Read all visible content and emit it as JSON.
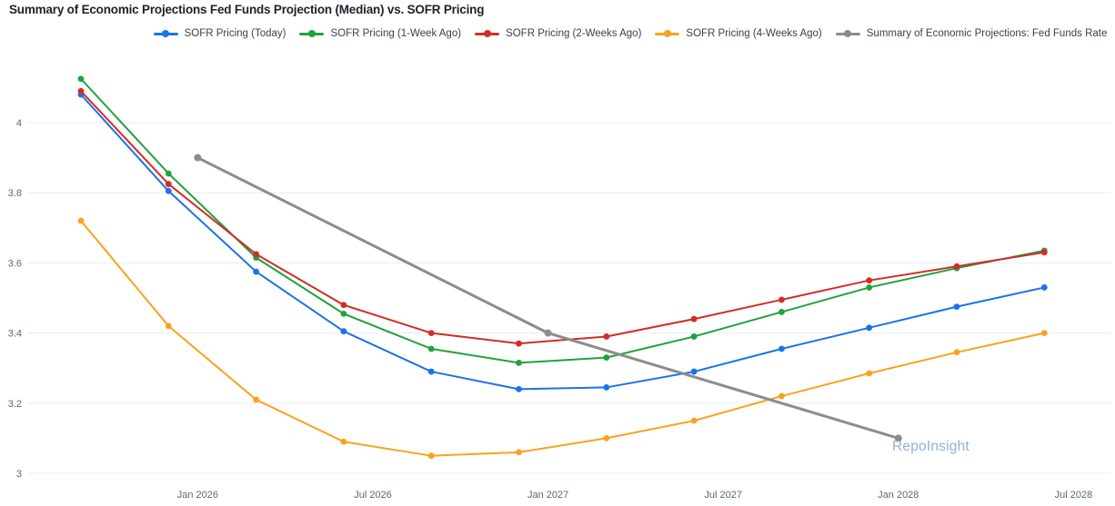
{
  "chart": {
    "title": "Summary of Economic Projections Fed Funds Projection (Median) vs. SOFR Pricing",
    "watermark": "RepoInsight"
  },
  "chart_data": {
    "type": "line",
    "title": "Summary of Economic Projections Fed Funds Projection (Median) vs. SOFR Pricing",
    "xlabel": "",
    "ylabel": "",
    "ylim": [
      2.95,
      4.2
    ],
    "grid": "horizontal-only",
    "legend_position": "top-center",
    "x_unit": "months since Sep 2025",
    "x_ticks": [
      {
        "label": "Jan 2026",
        "m": 4
      },
      {
        "label": "Jul 2026",
        "m": 10
      },
      {
        "label": "Jan 2027",
        "m": 16
      },
      {
        "label": "Jul 2027",
        "m": 22
      },
      {
        "label": "Jan 2028",
        "m": 28
      },
      {
        "label": "Jul 2028",
        "m": 34
      }
    ],
    "y_ticks": [
      {
        "label": "4",
        "v": 4.0
      },
      {
        "label": "3.8",
        "v": 3.8
      },
      {
        "label": "3.6",
        "v": 3.6
      },
      {
        "label": "3.4",
        "v": 3.4
      },
      {
        "label": "3.2",
        "v": 3.2
      },
      {
        "label": "3",
        "v": 3.0
      }
    ],
    "series": [
      {
        "name": "SOFR Pricing (Today)",
        "color": "#1a73e8",
        "line_width": 2,
        "dates": [
          "Sep 2025",
          "Dec 2025",
          "Mar 2026",
          "Jun 2026",
          "Sep 2026",
          "Dec 2026",
          "Mar 2027",
          "Jun 2027",
          "Sep 2027",
          "Dec 2027",
          "Mar 2028",
          "Jun 2028"
        ],
        "x_m": [
          0,
          3,
          6,
          9,
          12,
          15,
          18,
          21,
          24,
          27,
          30,
          33
        ],
        "values": [
          4.08,
          3.805,
          3.575,
          3.405,
          3.29,
          3.24,
          3.245,
          3.29,
          3.355,
          3.415,
          3.475,
          3.53
        ]
      },
      {
        "name": "SOFR Pricing (1-Week Ago)",
        "color": "#22a13d",
        "line_width": 2,
        "dates": [
          "Sep 2025",
          "Dec 2025",
          "Mar 2026",
          "Jun 2026",
          "Sep 2026",
          "Dec 2026",
          "Mar 2027",
          "Jun 2027",
          "Sep 2027",
          "Dec 2027",
          "Mar 2028",
          "Jun 2028"
        ],
        "x_m": [
          0,
          3,
          6,
          9,
          12,
          15,
          18,
          21,
          24,
          27,
          30,
          33
        ],
        "values": [
          4.125,
          3.855,
          3.615,
          3.455,
          3.355,
          3.315,
          3.33,
          3.39,
          3.46,
          3.53,
          3.585,
          3.635
        ]
      },
      {
        "name": "SOFR Pricing (2-Weeks Ago)",
        "color": "#d22d26",
        "line_width": 2,
        "dates": [
          "Sep 2025",
          "Dec 2025",
          "Mar 2026",
          "Jun 2026",
          "Sep 2026",
          "Dec 2026",
          "Mar 2027",
          "Jun 2027",
          "Sep 2027",
          "Dec 2027",
          "Mar 2028",
          "Jun 2028"
        ],
        "x_m": [
          0,
          3,
          6,
          9,
          12,
          15,
          18,
          21,
          24,
          27,
          30,
          33
        ],
        "values": [
          4.09,
          3.825,
          3.625,
          3.48,
          3.4,
          3.37,
          3.39,
          3.44,
          3.495,
          3.55,
          3.59,
          3.63
        ]
      },
      {
        "name": "SOFR Pricing (4-Weeks Ago)",
        "color": "#faa21e",
        "line_width": 2,
        "dates": [
          "Sep 2025",
          "Dec 2025",
          "Mar 2026",
          "Jun 2026",
          "Sep 2026",
          "Dec 2026",
          "Mar 2027",
          "Jun 2027",
          "Sep 2027",
          "Dec 2027",
          "Mar 2028",
          "Jun 2028"
        ],
        "x_m": [
          0,
          3,
          6,
          9,
          12,
          15,
          18,
          21,
          24,
          27,
          30,
          33
        ],
        "values": [
          3.72,
          3.42,
          3.21,
          3.09,
          3.05,
          3.06,
          3.1,
          3.15,
          3.22,
          3.285,
          3.345,
          3.4
        ]
      },
      {
        "name": "Summary of Economic Projections: Fed Funds Rate",
        "color": "#8c8c8c",
        "line_width": 3,
        "dates": [
          "Jan 2026",
          "Jan 2027",
          "Jan 2028"
        ],
        "x_m": [
          4,
          16,
          28
        ],
        "values": [
          3.9,
          3.4,
          3.1
        ]
      }
    ]
  }
}
